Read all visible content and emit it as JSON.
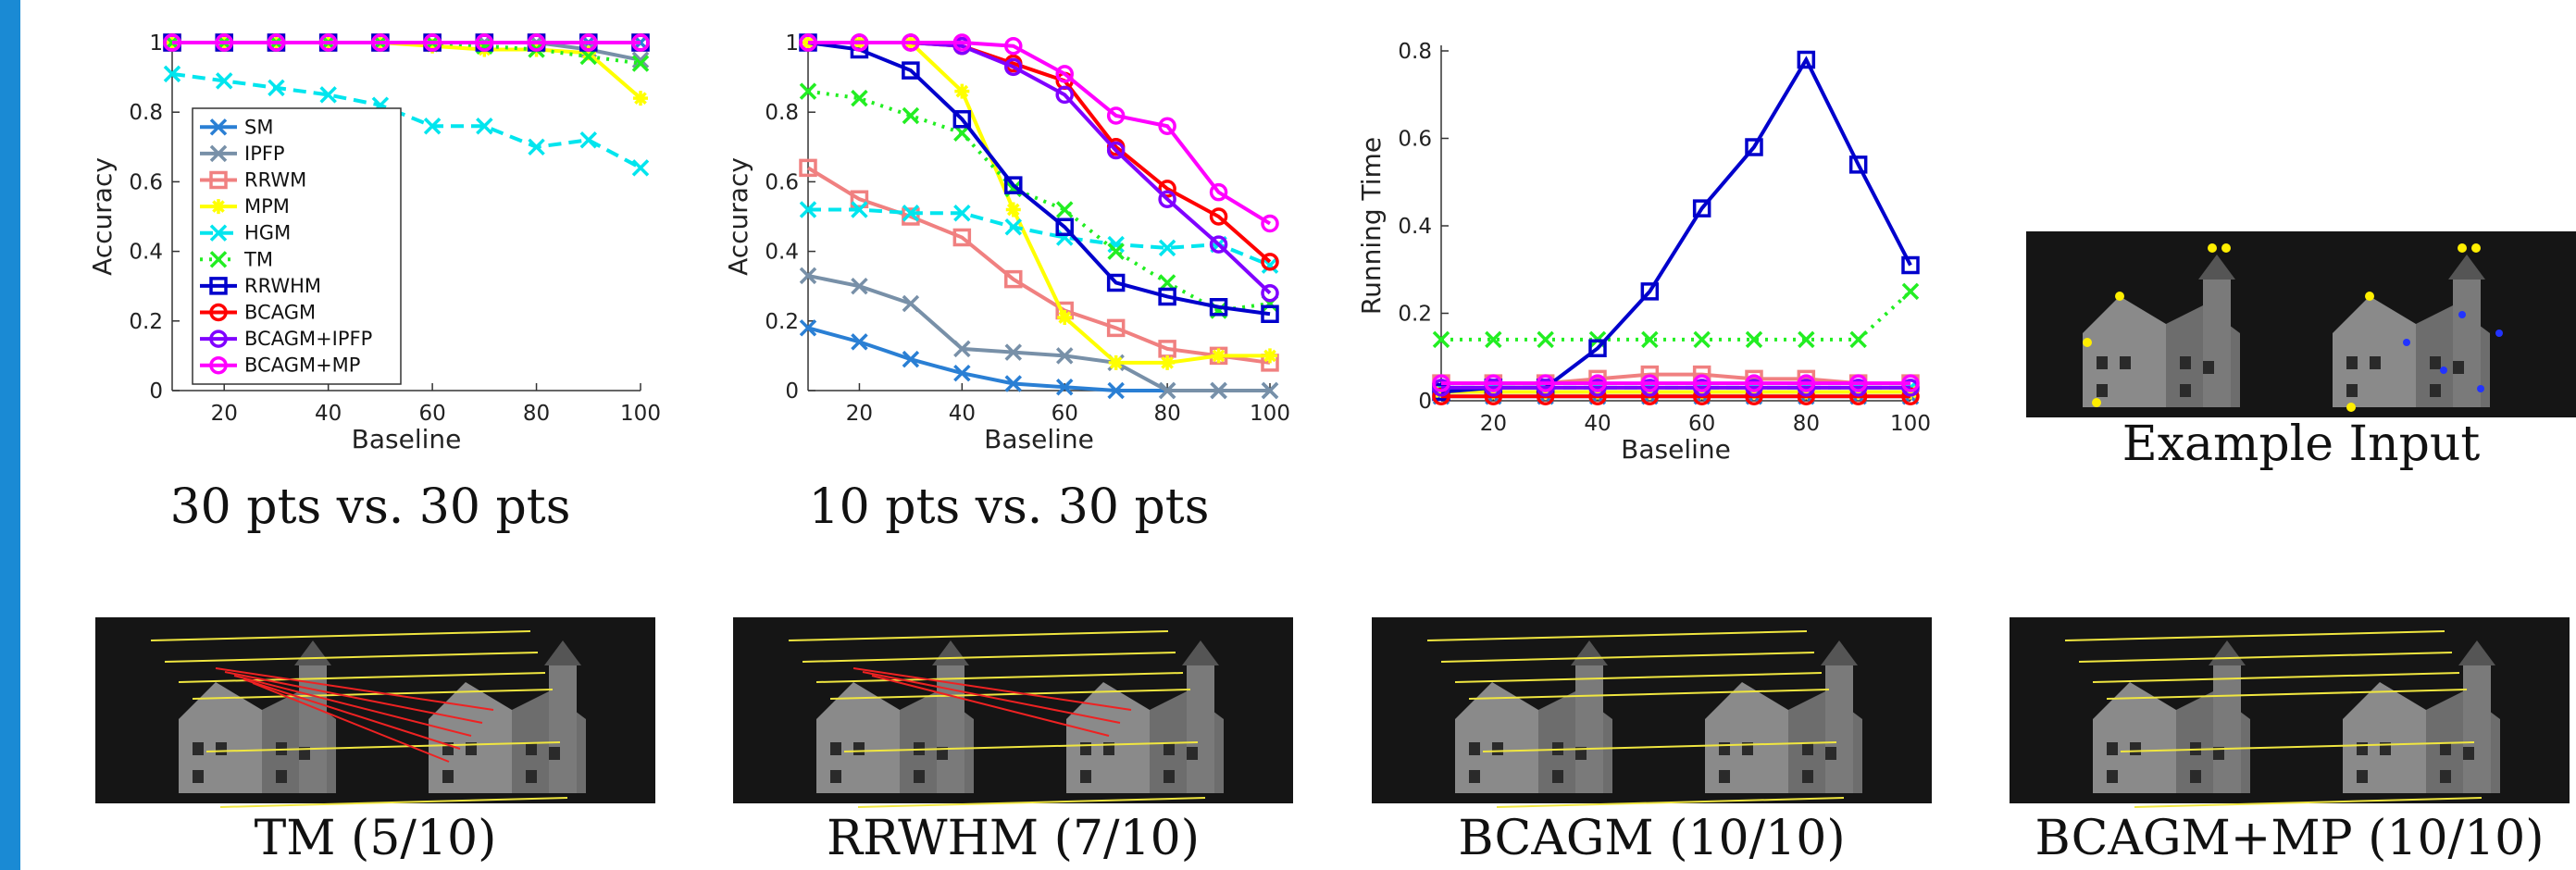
{
  "chart_data": [
    {
      "type": "line",
      "caption": "30 pts vs. 30 pts",
      "x_label": "Baseline",
      "y_label": "Accuracy",
      "x": [
        10,
        20,
        30,
        40,
        50,
        60,
        70,
        80,
        90,
        100
      ],
      "xlim": [
        10,
        100
      ],
      "xticks": [
        20,
        40,
        60,
        80,
        100
      ],
      "ylim": [
        0,
        1
      ],
      "yticks": [
        0,
        0.2,
        0.4,
        0.6,
        0.8,
        1
      ],
      "legend": "lower left",
      "series": [
        {
          "name": "SM",
          "color": "#2a7fd4",
          "marker": "x",
          "line_style": "solid",
          "values": [
            1,
            1,
            1,
            1,
            1,
            1,
            1,
            1,
            1,
            1
          ]
        },
        {
          "name": "IPFP",
          "color": "#7890a8",
          "marker": "x",
          "line_style": "solid",
          "values": [
            1,
            1,
            1,
            1,
            1,
            1,
            1,
            1,
            0.98,
            0.95
          ]
        },
        {
          "name": "RRWM",
          "color": "#f08080",
          "marker": "square",
          "line_style": "solid",
          "values": [
            1,
            1,
            1,
            1,
            1,
            1,
            1,
            1,
            1,
            1
          ]
        },
        {
          "name": "MPM",
          "color": "#ffff00",
          "marker": "star",
          "line_style": "solid",
          "values": [
            1,
            1,
            1,
            1,
            1,
            0.99,
            0.98,
            0.98,
            0.97,
            0.84
          ]
        },
        {
          "name": "HGM",
          "color": "#00e5ee",
          "marker": "x",
          "line_style": "dashed",
          "values": [
            0.91,
            0.89,
            0.87,
            0.85,
            0.82,
            0.76,
            0.76,
            0.7,
            0.72,
            0.64
          ]
        },
        {
          "name": "TM",
          "color": "#22ee22",
          "marker": "x",
          "line_style": "dotted",
          "values": [
            1,
            1,
            1,
            1,
            1,
            1,
            0.99,
            0.98,
            0.96,
            0.94
          ]
        },
        {
          "name": "RRWHM",
          "color": "#0000cc",
          "marker": "square",
          "line_style": "solid",
          "values": [
            1,
            1,
            1,
            1,
            1,
            1,
            1,
            1,
            1,
            1
          ]
        },
        {
          "name": "BCAGM",
          "color": "#ff0000",
          "marker": "circle",
          "line_style": "solid",
          "values": [
            1,
            1,
            1,
            1,
            1,
            1,
            1,
            1,
            1,
            1
          ]
        },
        {
          "name": "BCAGM+IPFP",
          "color": "#8000ff",
          "marker": "circle",
          "line_style": "solid",
          "values": [
            1,
            1,
            1,
            1,
            1,
            1,
            1,
            1,
            1,
            1
          ]
        },
        {
          "name": "BCAGM+MP",
          "color": "#ff00ff",
          "marker": "circle",
          "line_style": "solid",
          "values": [
            1,
            1,
            1,
            1,
            1,
            1,
            1,
            1,
            1,
            1
          ]
        }
      ]
    },
    {
      "type": "line",
      "caption": "10 pts vs. 30 pts",
      "x_label": "Baseline",
      "y_label": "Accuracy",
      "x": [
        10,
        20,
        30,
        40,
        50,
        60,
        70,
        80,
        90,
        100
      ],
      "xlim": [
        10,
        100
      ],
      "xticks": [
        20,
        40,
        60,
        80,
        100
      ],
      "ylim": [
        0,
        1
      ],
      "yticks": [
        0,
        0.2,
        0.4,
        0.6,
        0.8,
        1
      ],
      "series": [
        {
          "color": "#2a7fd4",
          "marker": "x",
          "line_style": "solid",
          "values": [
            0.18,
            0.14,
            0.09,
            0.05,
            0.02,
            0.01,
            0,
            0,
            0,
            0
          ]
        },
        {
          "color": "#7890a8",
          "marker": "x",
          "line_style": "solid",
          "values": [
            0.33,
            0.3,
            0.25,
            0.12,
            0.11,
            0.1,
            0.08,
            0,
            0,
            0
          ]
        },
        {
          "color": "#f08080",
          "marker": "square",
          "line_style": "solid",
          "values": [
            0.64,
            0.55,
            0.5,
            0.44,
            0.32,
            0.23,
            0.18,
            0.12,
            0.1,
            0.08
          ]
        },
        {
          "color": "#ffff00",
          "marker": "star",
          "line_style": "solid",
          "values": [
            1,
            1,
            1,
            0.86,
            0.52,
            0.21,
            0.08,
            0.08,
            0.1,
            0.1
          ]
        },
        {
          "color": "#00e5ee",
          "marker": "x",
          "line_style": "dashed",
          "values": [
            0.52,
            0.52,
            0.51,
            0.51,
            0.47,
            0.44,
            0.42,
            0.41,
            0.42,
            0.36
          ]
        },
        {
          "color": "#22ee22",
          "marker": "x",
          "line_style": "dotted",
          "values": [
            0.86,
            0.84,
            0.79,
            0.74,
            0.58,
            0.52,
            0.4,
            0.31,
            0.23,
            0.25
          ]
        },
        {
          "color": "#0000cc",
          "marker": "square",
          "line_style": "solid",
          "values": [
            1,
            0.98,
            0.92,
            0.78,
            0.59,
            0.47,
            0.31,
            0.27,
            0.24,
            0.22
          ]
        },
        {
          "color": "#ff0000",
          "marker": "circle",
          "line_style": "solid",
          "values": [
            1,
            1,
            1,
            0.99,
            0.94,
            0.89,
            0.7,
            0.58,
            0.5,
            0.37
          ]
        },
        {
          "color": "#8000ff",
          "marker": "circle",
          "line_style": "solid",
          "values": [
            1,
            1,
            1,
            0.99,
            0.93,
            0.85,
            0.69,
            0.55,
            0.42,
            0.28
          ]
        },
        {
          "color": "#ff00ff",
          "marker": "circle",
          "line_style": "solid",
          "values": [
            1,
            1,
            1,
            1,
            0.99,
            0.91,
            0.79,
            0.76,
            0.57,
            0.48
          ]
        }
      ]
    },
    {
      "type": "line",
      "x_label": "Baseline",
      "y_label": "Running Time",
      "x": [
        10,
        20,
        30,
        40,
        50,
        60,
        70,
        80,
        90,
        100
      ],
      "xlim": [
        10,
        100
      ],
      "xticks": [
        20,
        40,
        60,
        80,
        100
      ],
      "ylim": [
        0,
        0.8
      ],
      "yticks": [
        0,
        0.2,
        0.4,
        0.6,
        0.8
      ],
      "series": [
        {
          "color": "#2a7fd4",
          "marker": "x",
          "line_style": "solid",
          "values": [
            0.01,
            0.01,
            0.01,
            0.01,
            0.01,
            0.01,
            0.01,
            0.01,
            0.01,
            0.01
          ]
        },
        {
          "color": "#7890a8",
          "marker": "x",
          "line_style": "solid",
          "values": [
            0.02,
            0.02,
            0.02,
            0.02,
            0.02,
            0.02,
            0.02,
            0.02,
            0.02,
            0.02
          ]
        },
        {
          "color": "#f08080",
          "marker": "square",
          "line_style": "solid",
          "values": [
            0.04,
            0.04,
            0.04,
            0.05,
            0.06,
            0.06,
            0.05,
            0.05,
            0.04,
            0.04
          ]
        },
        {
          "color": "#ffff00",
          "marker": "star",
          "line_style": "solid",
          "values": [
            0.02,
            0.02,
            0.02,
            0.02,
            0.02,
            0.02,
            0.02,
            0.02,
            0.02,
            0.02
          ]
        },
        {
          "color": "#00e5ee",
          "marker": "x",
          "line_style": "dashed",
          "values": [
            0.03,
            0.03,
            0.03,
            0.03,
            0.03,
            0.03,
            0.03,
            0.03,
            0.03,
            0.03
          ]
        },
        {
          "color": "#22ee22",
          "marker": "x",
          "line_style": "dotted",
          "values": [
            0.14,
            0.14,
            0.14,
            0.14,
            0.14,
            0.14,
            0.14,
            0.14,
            0.14,
            0.25
          ]
        },
        {
          "color": "#0000cc",
          "marker": "square",
          "line_style": "solid",
          "values": [
            0.02,
            0.03,
            0.03,
            0.12,
            0.25,
            0.44,
            0.58,
            0.78,
            0.54,
            0.31
          ]
        },
        {
          "color": "#ff0000",
          "marker": "circle",
          "line_style": "solid",
          "values": [
            0.01,
            0.01,
            0.01,
            0.01,
            0.01,
            0.01,
            0.01,
            0.01,
            0.01,
            0.01
          ]
        },
        {
          "color": "#8000ff",
          "marker": "circle",
          "line_style": "solid",
          "values": [
            0.03,
            0.03,
            0.03,
            0.03,
            0.03,
            0.03,
            0.03,
            0.03,
            0.03,
            0.03
          ]
        },
        {
          "color": "#ff00ff",
          "marker": "circle",
          "line_style": "solid",
          "values": [
            0.04,
            0.04,
            0.04,
            0.04,
            0.04,
            0.04,
            0.04,
            0.04,
            0.04,
            0.04
          ]
        }
      ]
    }
  ],
  "example_input": {
    "caption": "Example Input"
  },
  "results": [
    {
      "caption": "TM (5/10)"
    },
    {
      "caption": "RRWHM (7/10)"
    },
    {
      "caption": "BCAGM (10/10)"
    },
    {
      "caption": "BCAGM+MP (10/10)"
    }
  ]
}
